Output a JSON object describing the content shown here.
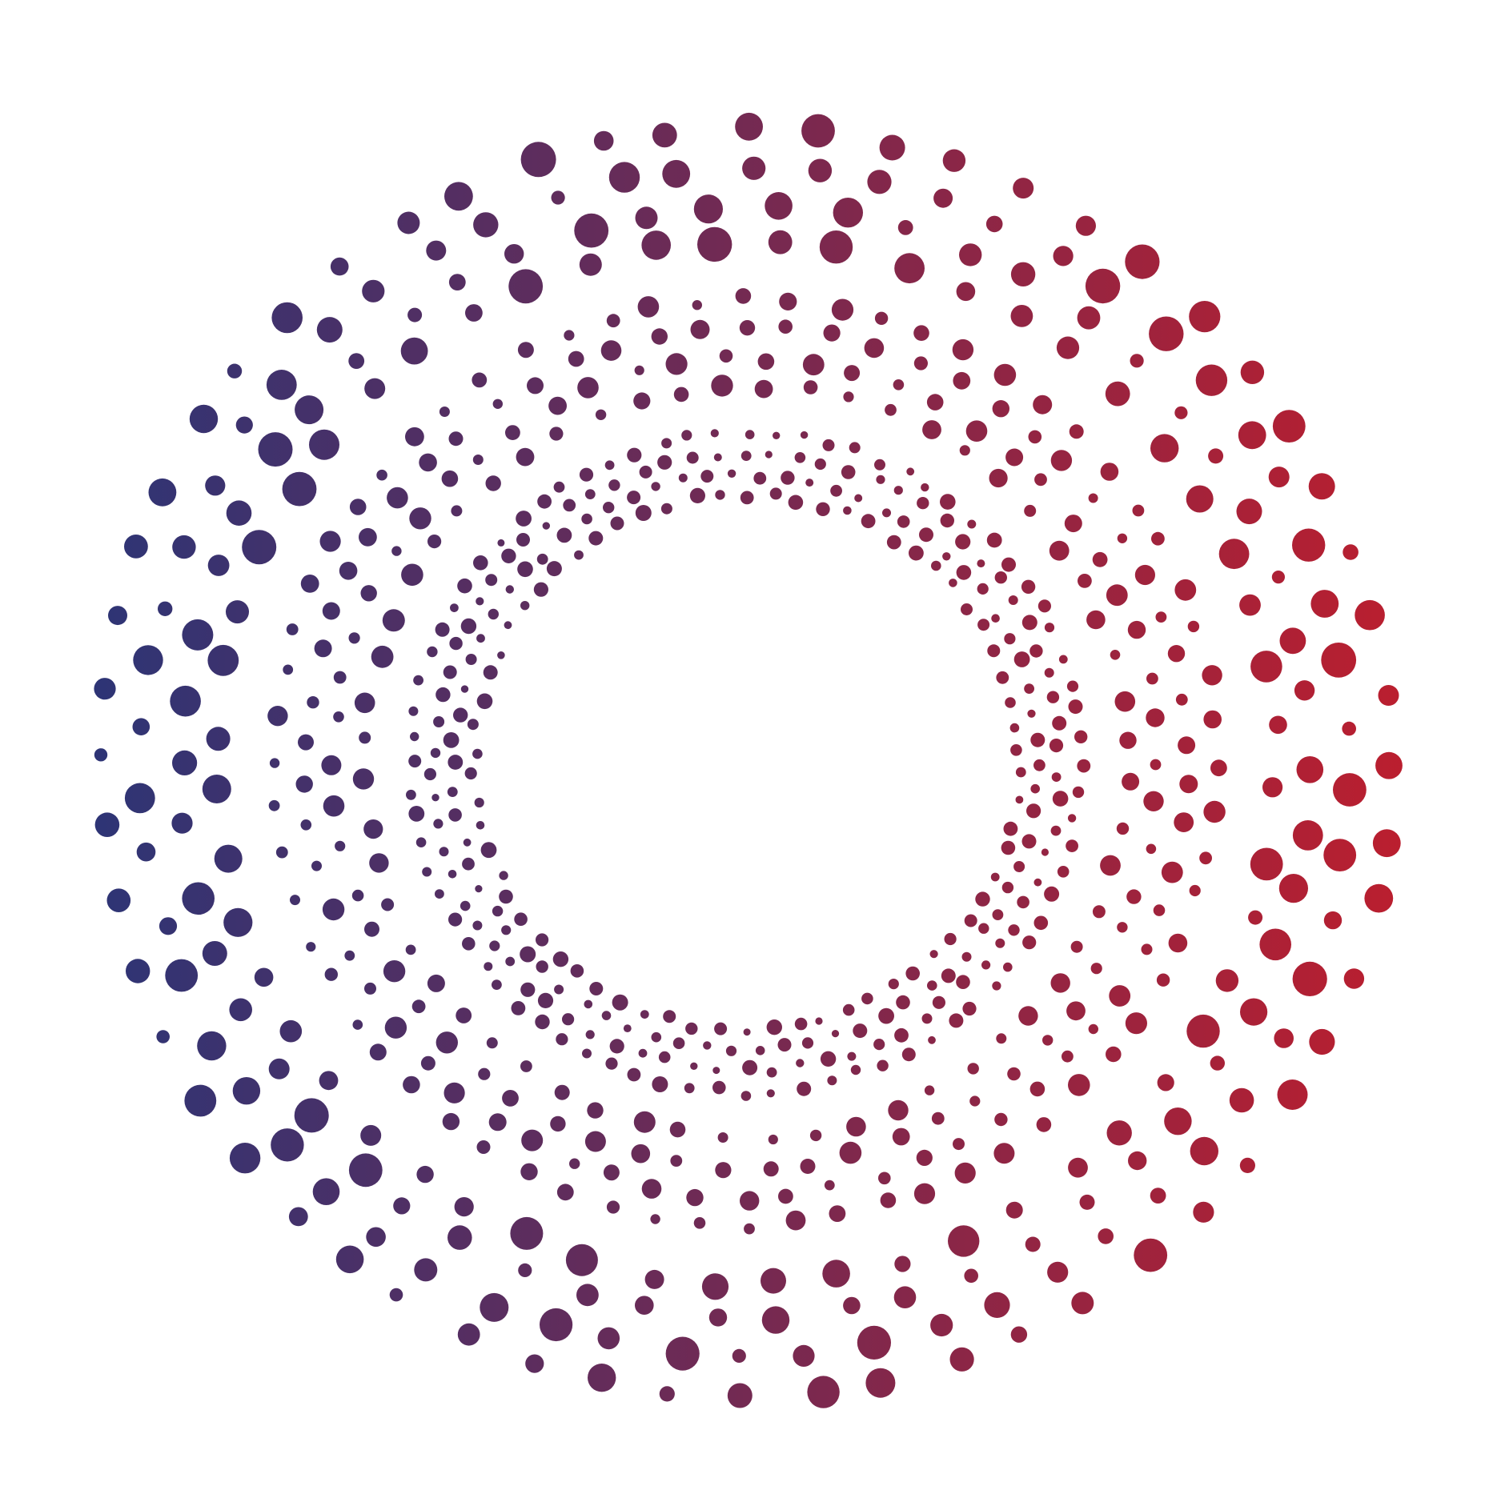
{
  "artwork": {
    "description_kind": "decorative dotted concentric rings",
    "background_color": "#ffffff",
    "gradient": {
      "start_color": "#2a3577",
      "end_color": "#be1e2d",
      "direction": "left-to-right"
    },
    "rings": [
      {
        "name": "outer",
        "rows": 4,
        "dot_size": "large"
      },
      {
        "name": "middle",
        "rows": 4,
        "dot_size": "medium"
      },
      {
        "name": "inner",
        "rows": 4,
        "dot_size": "small"
      }
    ]
  }
}
